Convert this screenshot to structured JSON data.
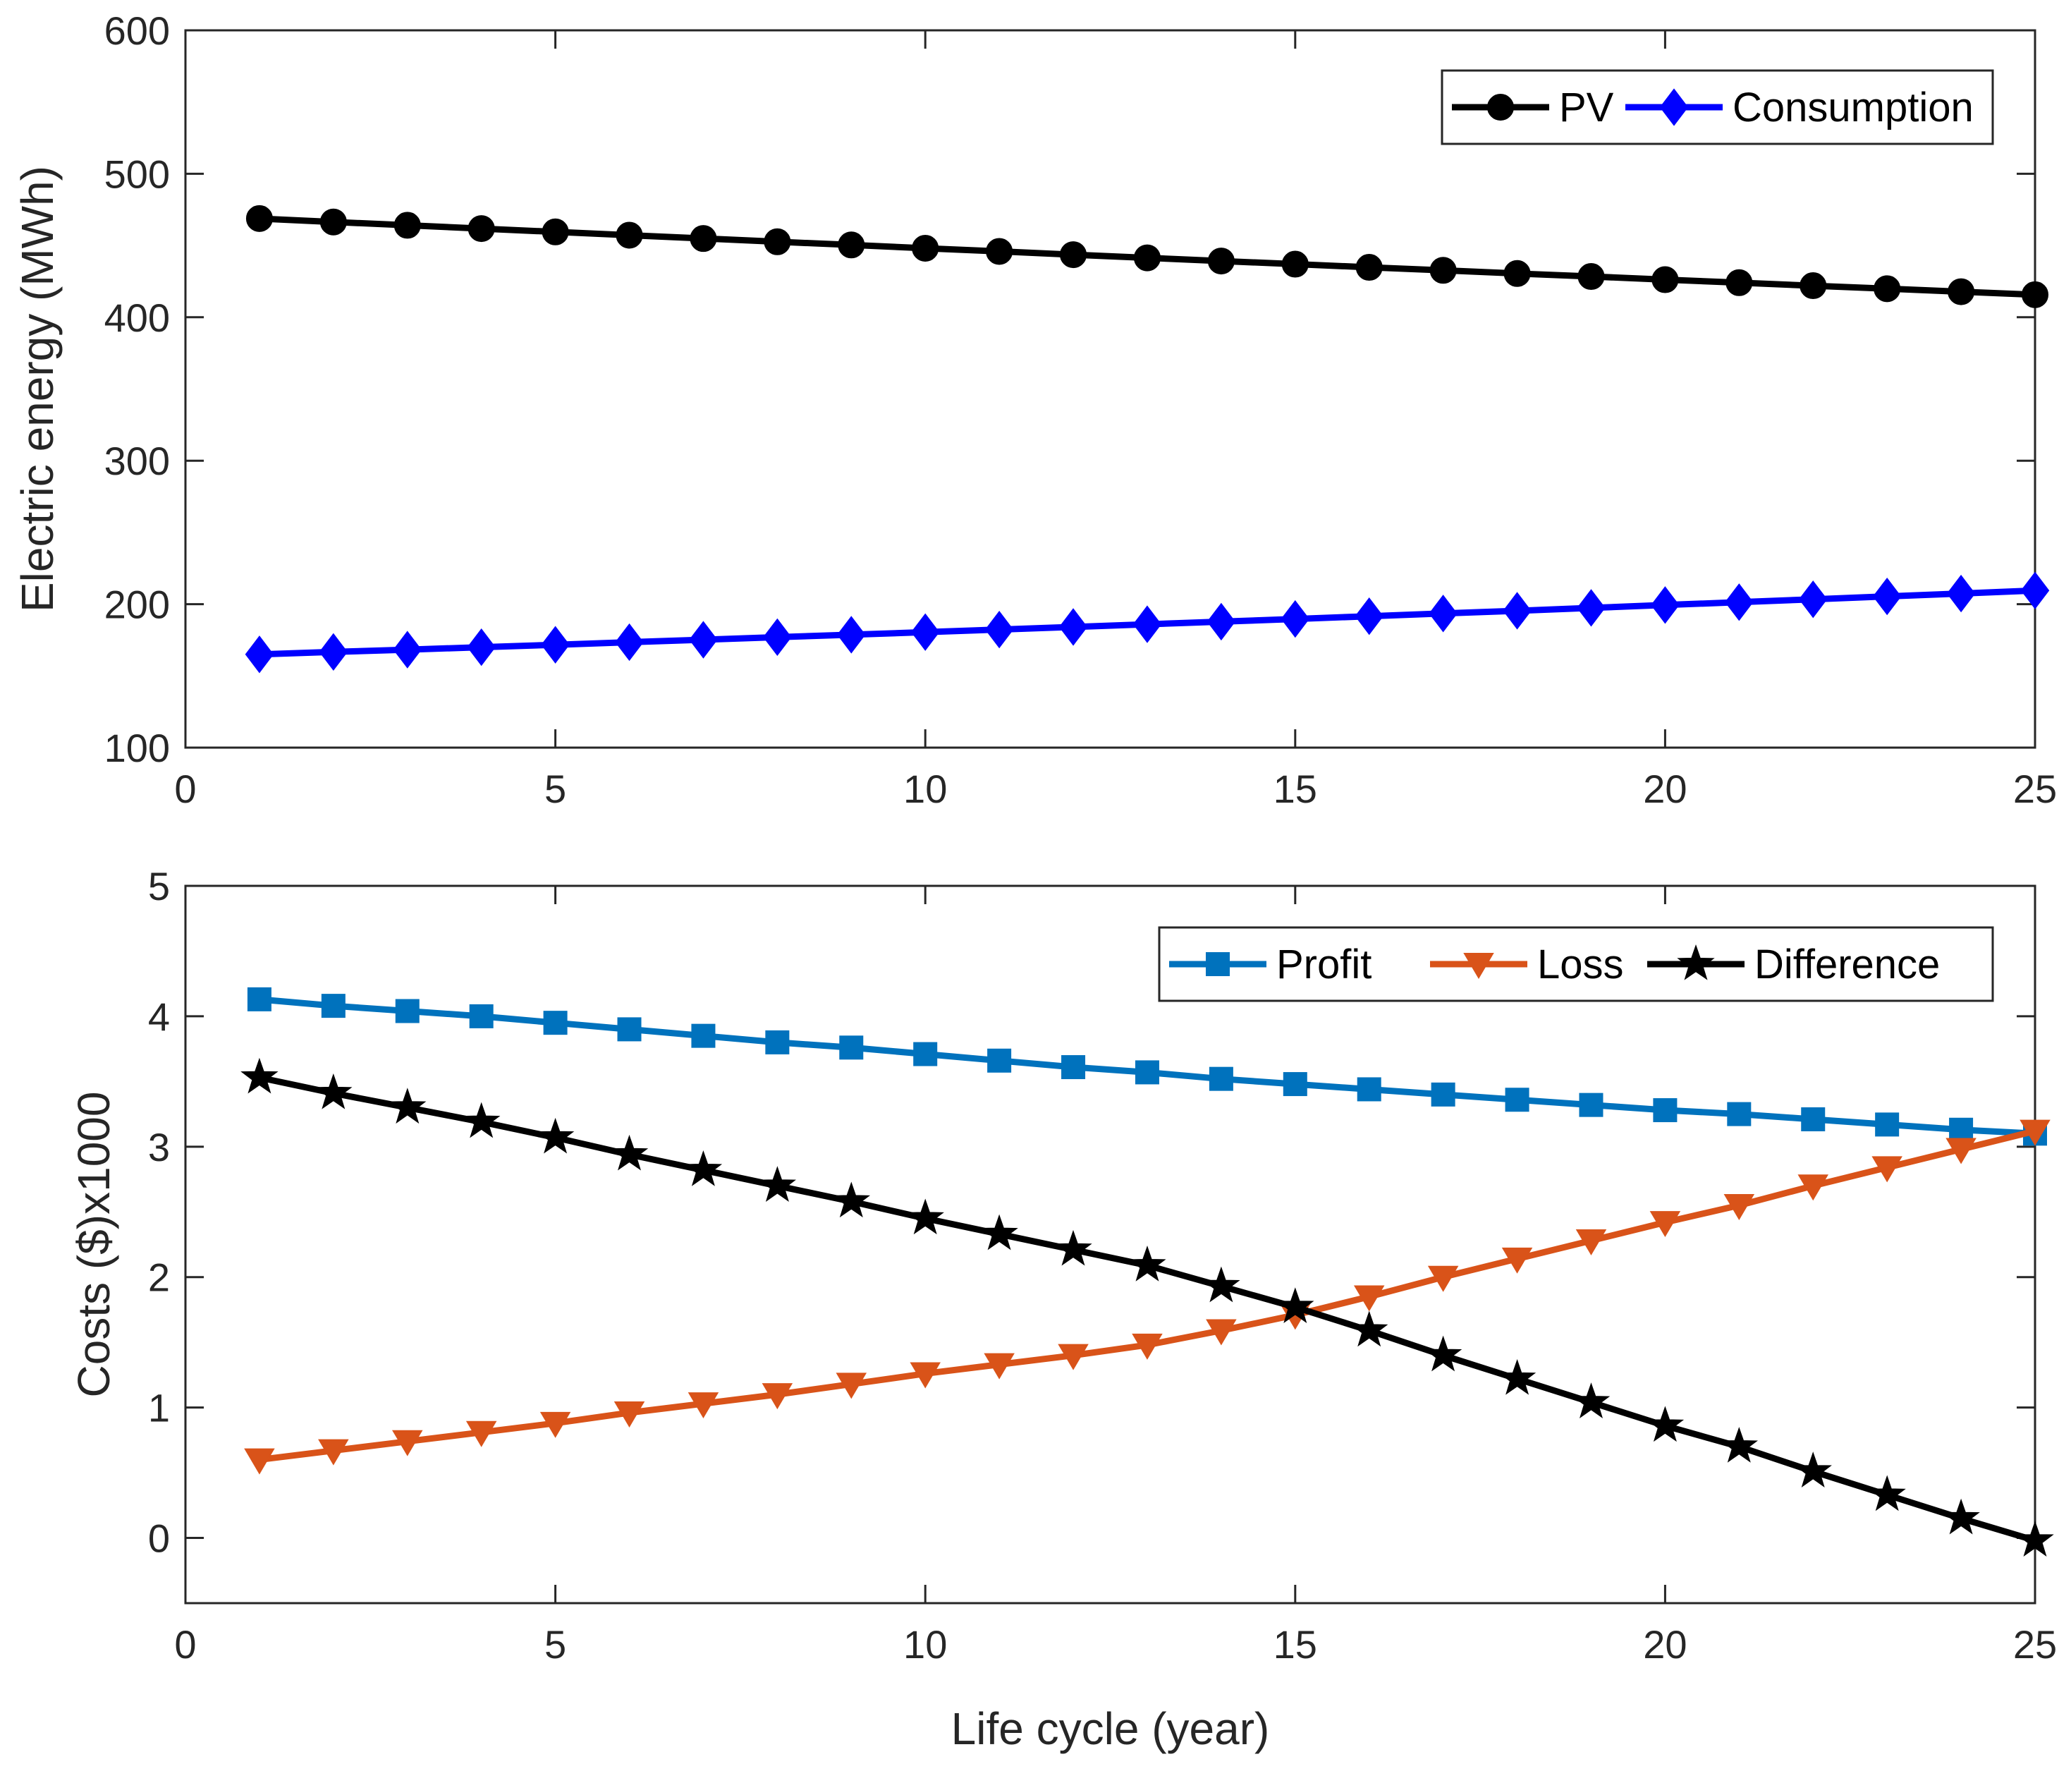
{
  "chart_data": [
    {
      "type": "line",
      "title": "",
      "xlabel": "",
      "ylabel": "Electric energy (MWh)",
      "xlim": [
        0,
        25
      ],
      "ylim": [
        100,
        600
      ],
      "xticks": [
        0,
        5,
        10,
        15,
        20,
        25
      ],
      "yticks": [
        100,
        200,
        300,
        400,
        500,
        600
      ],
      "legend_position": "top-right",
      "x": [
        1,
        2,
        3,
        4,
        5,
        6,
        7,
        8,
        9,
        10,
        11,
        12,
        13,
        14,
        15,
        16,
        17,
        18,
        19,
        20,
        21,
        22,
        23,
        24,
        25
      ],
      "series": [
        {
          "name": "PV",
          "color": "#000000",
          "marker": "circle",
          "values": [
            468.8,
            466.4,
            464.1,
            461.8,
            459.5,
            457.2,
            454.9,
            452.6,
            450.4,
            448.1,
            445.9,
            443.6,
            441.4,
            439.2,
            437.0,
            434.8,
            432.7,
            430.5,
            428.4,
            426.2,
            424.1,
            422.0,
            419.9,
            417.8,
            415.7
          ]
        },
        {
          "name": "Consumption",
          "color": "#0000ff",
          "marker": "diamond",
          "values": [
            165.0,
            166.7,
            168.3,
            170.0,
            171.7,
            173.5,
            175.2,
            177.0,
            178.7,
            180.5,
            182.3,
            184.1,
            186.0,
            187.8,
            189.7,
            191.6,
            193.5,
            195.4,
            197.4,
            199.4,
            201.4,
            203.4,
            205.4,
            207.4,
            209.5
          ]
        }
      ]
    },
    {
      "type": "line",
      "title": "",
      "xlabel": "Life cycle (year)",
      "ylabel": "Costs ($)x1000",
      "xlim": [
        0,
        25
      ],
      "ylim": [
        -0.5,
        5
      ],
      "xticks": [
        0,
        5,
        10,
        15,
        20,
        25
      ],
      "yticks": [
        0,
        1,
        2,
        3,
        4,
        5
      ],
      "legend_position": "top-right",
      "x": [
        1,
        2,
        3,
        4,
        5,
        6,
        7,
        8,
        9,
        10,
        11,
        12,
        13,
        14,
        15,
        16,
        17,
        18,
        19,
        20,
        21,
        22,
        23,
        24,
        25
      ],
      "series": [
        {
          "name": "Profit",
          "color": "#0072bd",
          "marker": "square",
          "values": [
            4.13,
            4.08,
            4.04,
            4.0,
            3.95,
            3.9,
            3.85,
            3.8,
            3.76,
            3.71,
            3.66,
            3.61,
            3.57,
            3.52,
            3.48,
            3.44,
            3.4,
            3.36,
            3.32,
            3.28,
            3.25,
            3.21,
            3.17,
            3.13,
            3.1
          ]
        },
        {
          "name": "Loss",
          "color": "#d95319",
          "marker": "triangle-down",
          "values": [
            0.6,
            0.67,
            0.74,
            0.81,
            0.88,
            0.96,
            1.03,
            1.1,
            1.18,
            1.26,
            1.33,
            1.4,
            1.48,
            1.59,
            1.71,
            1.85,
            2.0,
            2.14,
            2.28,
            2.42,
            2.55,
            2.7,
            2.84,
            2.98,
            3.12
          ]
        },
        {
          "name": "Difference",
          "color": "#000000",
          "marker": "star",
          "values": [
            3.53,
            3.41,
            3.3,
            3.19,
            3.07,
            2.94,
            2.82,
            2.7,
            2.58,
            2.45,
            2.33,
            2.21,
            2.09,
            1.93,
            1.77,
            1.59,
            1.4,
            1.22,
            1.04,
            0.86,
            0.7,
            0.51,
            0.33,
            0.15,
            -0.02
          ]
        }
      ]
    }
  ]
}
